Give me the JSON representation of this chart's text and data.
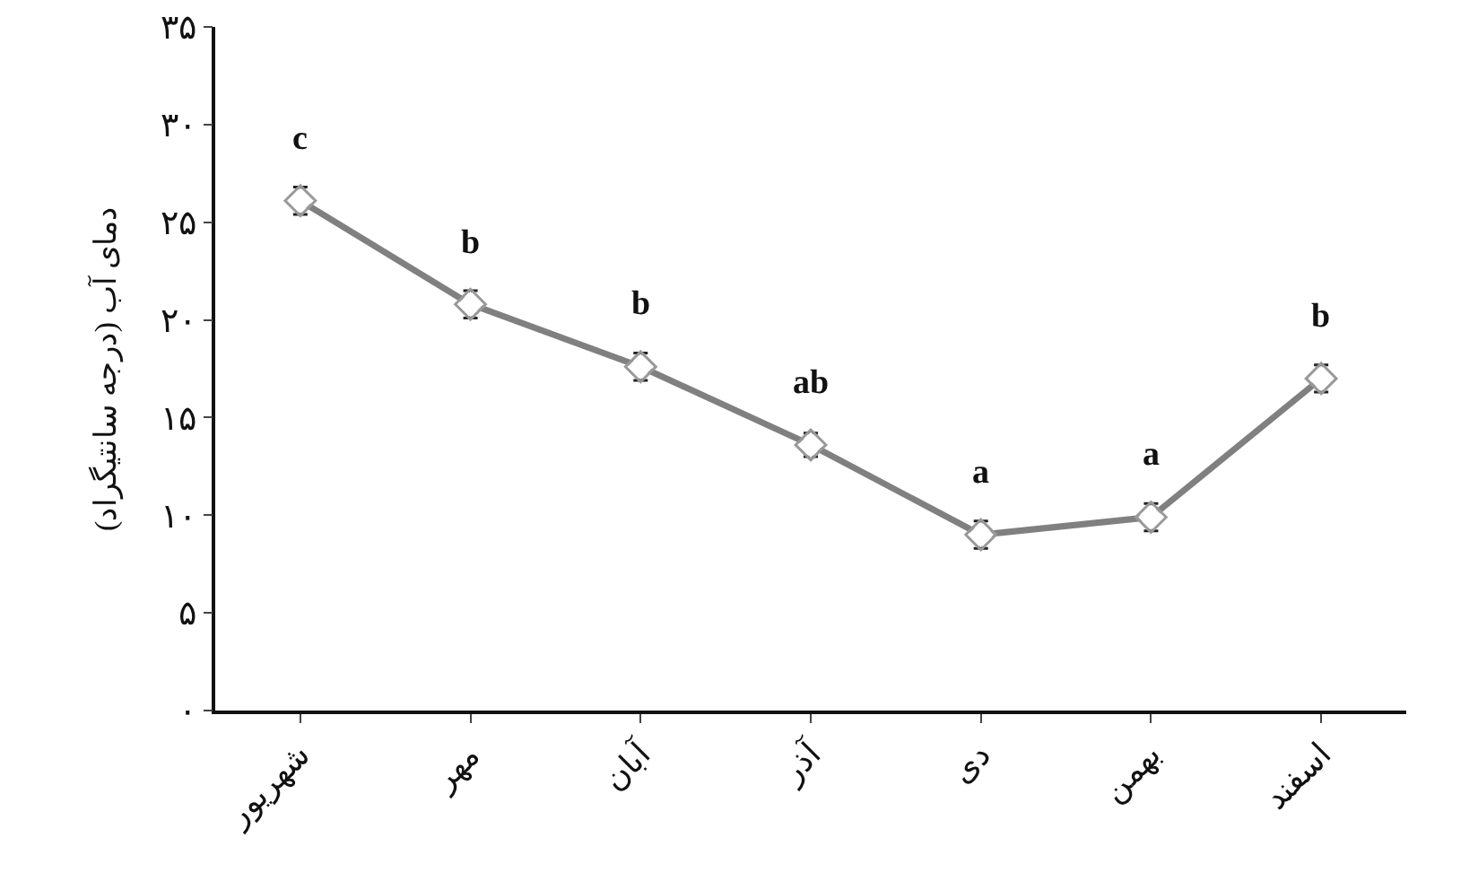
{
  "chart_data": {
    "type": "line",
    "ylabel": "دمای آب (درجه سانتیگراد)",
    "categories": [
      "شهریور",
      "مهر",
      "آبان",
      "آذر",
      "دی",
      "بهمن",
      "اسفند"
    ],
    "series": [
      {
        "color": "#808080",
        "values": [
          26.1,
          20.8,
          17.6,
          13.6,
          9.0,
          9.9,
          17.0
        ],
        "errors": [
          0.7,
          0.7,
          0.7,
          0.6,
          0.7,
          0.7,
          0.7
        ]
      }
    ],
    "ylim": [
      0,
      35
    ],
    "yticks": [
      {
        "value": 0,
        "label": "۰"
      },
      {
        "value": 5,
        "label": "۵"
      },
      {
        "value": 10,
        "label": "۱۰"
      },
      {
        "value": 15,
        "label": "۱۵"
      },
      {
        "value": 20,
        "label": "۲۰"
      },
      {
        "value": 25,
        "label": "۲۵"
      },
      {
        "value": 30,
        "label": "۳۰"
      },
      {
        "value": 35,
        "label": "۳۵"
      }
    ],
    "annotations": [
      {
        "text": "c",
        "x": "شهریور",
        "y": 26.1
      },
      {
        "text": "b",
        "x": "مهر",
        "y": 20.8
      },
      {
        "text": "b",
        "x": "آبان",
        "y": 17.6
      },
      {
        "text": "ab",
        "x": "آذر",
        "y": 13.6
      },
      {
        "text": "a",
        "x": "دی",
        "y": 9.0
      },
      {
        "text": "a",
        "x": "بهمن",
        "y": 9.9
      },
      {
        "text": "b",
        "x": "اسفند",
        "y": 17.0
      }
    ],
    "marker": "diamond",
    "line_style": "solid"
  }
}
